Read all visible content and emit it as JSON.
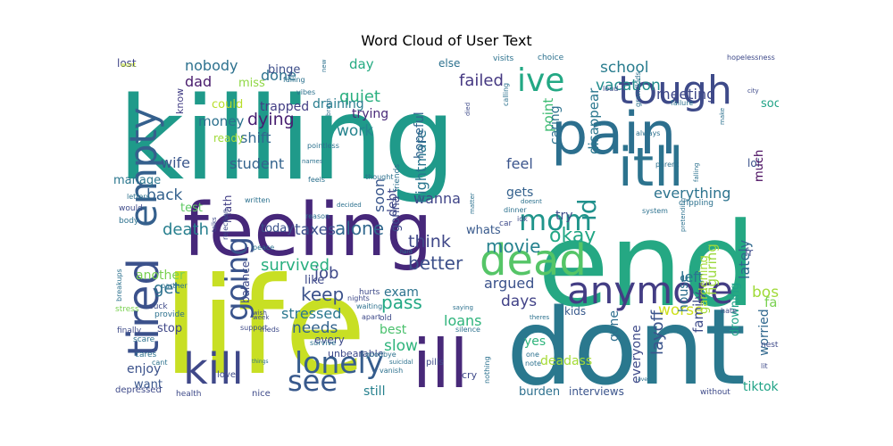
{
  "chart_data": {
    "type": "wordcloud",
    "title": "Word Cloud of User Text",
    "colormap": "viridis",
    "words": [
      {
        "text": "killing",
        "color": "#1f9a8a"
      },
      {
        "text": "life",
        "color": "#c8df24"
      },
      {
        "text": "feeling",
        "color": "#46277a"
      },
      {
        "text": "end",
        "color": "#25a883"
      },
      {
        "text": "dont",
        "color": "#2a788e"
      },
      {
        "text": "pain",
        "color": "#2c6f8e"
      },
      {
        "text": "tough",
        "color": "#3e4a89"
      },
      {
        "text": "itll",
        "color": "#2c738e"
      },
      {
        "text": "anymore",
        "color": "#433d84"
      },
      {
        "text": "tired",
        "color": "#3b518b"
      },
      {
        "text": "empty",
        "color": "#35608d"
      },
      {
        "text": "dead",
        "color": "#55c567"
      },
      {
        "text": "ill",
        "color": "#482979"
      },
      {
        "text": "kill",
        "color": "#3f4889"
      },
      {
        "text": "lonely",
        "color": "#365d8d"
      },
      {
        "text": "see",
        "color": "#38598c"
      },
      {
        "text": "going",
        "color": "#3a548c"
      },
      {
        "text": "ive",
        "color": "#23a884"
      },
      {
        "text": "mom",
        "color": "#1f958b"
      },
      {
        "text": "id",
        "color": "#21908c"
      },
      {
        "text": "job",
        "color": "#3e4989"
      },
      {
        "text": "keep",
        "color": "#3b528b"
      },
      {
        "text": "death",
        "color": "#277f8e"
      },
      {
        "text": "alone",
        "color": "#31688e"
      },
      {
        "text": "taxes",
        "color": "#3b518b"
      },
      {
        "text": "survived",
        "color": "#29af7f"
      },
      {
        "text": "think",
        "color": "#3f4788"
      },
      {
        "text": "better",
        "color": "#3c4f8a"
      },
      {
        "text": "okay",
        "color": "#22a785"
      },
      {
        "text": "movie",
        "color": "#26828e"
      },
      {
        "text": "boss",
        "color": "#a0da39"
      },
      {
        "text": "worse",
        "color": "#cfe11c"
      },
      {
        "text": "everything",
        "color": "#2c738e"
      },
      {
        "text": "layoff",
        "color": "#3a548c"
      },
      {
        "text": "family",
        "color": "#3e4c8a"
      },
      {
        "text": "lately",
        "color": "#30698e"
      },
      {
        "text": "figuring",
        "color": "#9bd93c"
      },
      {
        "text": "house",
        "color": "#2e6e8e"
      },
      {
        "text": "left",
        "color": "#2b748e"
      },
      {
        "text": "worried",
        "color": "#31688e"
      },
      {
        "text": "drowning",
        "color": "#1fa188"
      },
      {
        "text": "tiktok",
        "color": "#20a386"
      },
      {
        "text": "fail",
        "color": "#7ad151"
      },
      {
        "text": "school",
        "color": "#287c8e"
      },
      {
        "text": "vacation",
        "color": "#228c8d"
      },
      {
        "text": "meeting",
        "color": "#3f4788"
      },
      {
        "text": "failed",
        "color": "#453882"
      },
      {
        "text": "quiet",
        "color": "#29af7f"
      },
      {
        "text": "work",
        "color": "#25848e"
      },
      {
        "text": "dying",
        "color": "#481f71"
      },
      {
        "text": "shift",
        "color": "#31678e"
      },
      {
        "text": "done",
        "color": "#2c718e"
      },
      {
        "text": "money",
        "color": "#2c718e"
      },
      {
        "text": "dad",
        "color": "#481a6c"
      },
      {
        "text": "miss",
        "color": "#8fd744"
      },
      {
        "text": "trapped",
        "color": "#433e85"
      },
      {
        "text": "draining",
        "color": "#287d8e"
      },
      {
        "text": "trying",
        "color": "#482878"
      },
      {
        "text": "nobody",
        "color": "#2c718e"
      },
      {
        "text": "binge",
        "color": "#3d4e8a"
      },
      {
        "text": "day",
        "color": "#25ab82"
      },
      {
        "text": "student",
        "color": "#33638d"
      },
      {
        "text": "wife",
        "color": "#39568c"
      },
      {
        "text": "back",
        "color": "#34618d"
      },
      {
        "text": "manage",
        "color": "#2a768e"
      },
      {
        "text": "test",
        "color": "#5ec962"
      },
      {
        "text": "get",
        "color": "#2c718e"
      },
      {
        "text": "another",
        "color": "#7ad151"
      },
      {
        "text": "needs",
        "color": "#33638d"
      },
      {
        "text": "stressed",
        "color": "#2a778e"
      },
      {
        "text": "pass",
        "color": "#22a884"
      },
      {
        "text": "days",
        "color": "#414287"
      },
      {
        "text": "argued",
        "color": "#3b528b"
      },
      {
        "text": "loans",
        "color": "#2fb47c"
      },
      {
        "text": "exam",
        "color": "#2c728e"
      },
      {
        "text": "slow",
        "color": "#2fb47c"
      },
      {
        "text": "best",
        "color": "#4ac16d"
      },
      {
        "text": "still",
        "color": "#26818e"
      },
      {
        "text": "wanna",
        "color": "#404588"
      },
      {
        "text": "nightmare",
        "color": "#2a768e"
      },
      {
        "text": "hopeful",
        "color": "#32648e"
      },
      {
        "text": "point",
        "color": "#3fbc73"
      },
      {
        "text": "caring",
        "color": "#2c728e"
      },
      {
        "text": "disappear",
        "color": "#2a778e"
      },
      {
        "text": "feel",
        "color": "#3a548c"
      },
      {
        "text": "soon",
        "color": "#39568c"
      },
      {
        "text": "debt",
        "color": "#3f4788"
      },
      {
        "text": "gonna",
        "color": "#3e4a89"
      },
      {
        "text": "gets",
        "color": "#34618d"
      },
      {
        "text": "whats",
        "color": "#38598c"
      },
      {
        "text": "try",
        "color": "#3d4d8a"
      },
      {
        "text": "kids",
        "color": "#38598c"
      },
      {
        "text": "gone",
        "color": "#2e6e8e"
      },
      {
        "text": "yes",
        "color": "#2fb47c"
      },
      {
        "text": "deadass",
        "color": "#a5db36"
      },
      {
        "text": "everyone",
        "color": "#3e4a89"
      },
      {
        "text": "burden",
        "color": "#2d708e"
      },
      {
        "text": "interviews",
        "color": "#3a548c"
      },
      {
        "text": "lol",
        "color": "#3b528b"
      },
      {
        "text": "much",
        "color": "#46085c"
      },
      {
        "text": "social",
        "color": "#20a386"
      },
      {
        "text": "fr",
        "color": "#3e4a89"
      },
      {
        "text": "gardening",
        "color": "#a5db36"
      },
      {
        "text": "enjoy",
        "color": "#3b528b"
      },
      {
        "text": "want",
        "color": "#39568c"
      },
      {
        "text": "stop",
        "color": "#3f4788"
      },
      {
        "text": "every",
        "color": "#3e4a89"
      },
      {
        "text": "like",
        "color": "#3e4989"
      },
      {
        "text": "lost",
        "color": "#404588"
      },
      {
        "text": "could",
        "color": "#b8de29"
      },
      {
        "text": "ready",
        "color": "#a0da39"
      },
      {
        "text": "today",
        "color": "#3b528b"
      },
      {
        "text": "balance",
        "color": "#3e4a89"
      },
      {
        "text": "math",
        "color": "#423f85"
      },
      {
        "text": "know",
        "color": "#433e85"
      },
      {
        "text": "else",
        "color": "#2c718e"
      },
      {
        "text": "visits",
        "color": "#2c718e"
      },
      {
        "text": "choice",
        "color": "#2c718e"
      },
      {
        "text": "unbearable",
        "color": "#3e4a89"
      },
      {
        "text": "pills",
        "color": "#3e4a89"
      },
      {
        "text": "cry",
        "color": "#3e4a89"
      },
      {
        "text": "health",
        "color": "#3e4a89"
      },
      {
        "text": "love",
        "color": "#3e4a89"
      },
      {
        "text": "nice",
        "color": "#3e4a89"
      },
      {
        "text": "depressed",
        "color": "#3e4a89"
      },
      {
        "text": "finally",
        "color": "#3e4a89"
      },
      {
        "text": "stress",
        "color": "#7ad151"
      },
      {
        "text": "suck",
        "color": "#3e4a89"
      },
      {
        "text": "provide",
        "color": "#2c718e"
      },
      {
        "text": "scare",
        "color": "#2c718e"
      },
      {
        "text": "cares",
        "color": "#2c718e"
      },
      {
        "text": "breakups",
        "color": "#2c718e"
      },
      {
        "text": "partner",
        "color": "#2c718e"
      },
      {
        "text": "body",
        "color": "#2c718e"
      },
      {
        "text": "would",
        "color": "#3e4a89"
      },
      {
        "text": "letters",
        "color": "#2c718e"
      },
      {
        "text": "wont",
        "color": "#c2df23"
      },
      {
        "text": "failing",
        "color": "#2c718e"
      },
      {
        "text": "vibes",
        "color": "#2c718e"
      },
      {
        "text": "pointless",
        "color": "#2c718e"
      },
      {
        "text": "names",
        "color": "#2c718e"
      },
      {
        "text": "written",
        "color": "#2c718e"
      },
      {
        "text": "rejection",
        "color": "#3e4a89"
      },
      {
        "text": "talks",
        "color": "#3e4a89"
      },
      {
        "text": "peace",
        "color": "#2c718e"
      },
      {
        "text": "wish",
        "color": "#3e4a89"
      },
      {
        "text": "week",
        "color": "#3e4a89"
      },
      {
        "text": "support",
        "color": "#3e4a89"
      },
      {
        "text": "meds",
        "color": "#3e4a89"
      },
      {
        "text": "things",
        "color": "#2c718e"
      },
      {
        "text": "survive",
        "color": "#2c718e"
      },
      {
        "text": "vanish",
        "color": "#2c718e"
      },
      {
        "text": "goodbye",
        "color": "#2c718e"
      },
      {
        "text": "hurts",
        "color": "#3e4a89"
      },
      {
        "text": "nights",
        "color": "#3e4a89"
      },
      {
        "text": "waiting",
        "color": "#2c718e"
      },
      {
        "text": "apart",
        "color": "#3e4a89"
      },
      {
        "text": "old",
        "color": "#3e4a89"
      },
      {
        "text": "silence",
        "color": "#2c718e"
      },
      {
        "text": "saying",
        "color": "#2c718e"
      },
      {
        "text": "suicidal",
        "color": "#2c718e"
      },
      {
        "text": "nothing",
        "color": "#2c718e"
      },
      {
        "text": "one",
        "color": "#2c718e"
      },
      {
        "text": "note",
        "color": "#2c718e"
      },
      {
        "text": "theres",
        "color": "#2c718e"
      },
      {
        "text": "hard",
        "color": "#2c718e"
      },
      {
        "text": "car",
        "color": "#3e4a89"
      },
      {
        "text": "idk",
        "color": "#3e4a89"
      },
      {
        "text": "dinner",
        "color": "#2c718e"
      },
      {
        "text": "doesnt",
        "color": "#2c718e"
      },
      {
        "text": "thought",
        "color": "#2c718e"
      },
      {
        "text": "reason",
        "color": "#2c718e"
      },
      {
        "text": "decided",
        "color": "#2c718e"
      },
      {
        "text": "matter",
        "color": "#2c718e"
      },
      {
        "text": "friends",
        "color": "#2c718e"
      },
      {
        "text": "feels",
        "color": "#2c718e"
      },
      {
        "text": "brush",
        "color": "#2c718e"
      },
      {
        "text": "system",
        "color": "#2c718e"
      },
      {
        "text": "crippling",
        "color": "#2c718e"
      },
      {
        "text": "pretending",
        "color": "#2c718e"
      },
      {
        "text": "falling",
        "color": "#2c718e"
      },
      {
        "text": "parent",
        "color": "#2c718e"
      },
      {
        "text": "always",
        "color": "#2c718e"
      },
      {
        "text": "failure",
        "color": "#2c718e"
      },
      {
        "text": "make",
        "color": "#2c718e"
      },
      {
        "text": "hopelessness",
        "color": "#3e4a89"
      },
      {
        "text": "city",
        "color": "#3e4a89"
      },
      {
        "text": "loud",
        "color": "#3e4a89"
      },
      {
        "text": "grandkids",
        "color": "#2c718e"
      },
      {
        "text": "calling",
        "color": "#2c718e"
      },
      {
        "text": "died",
        "color": "#3e4a89"
      },
      {
        "text": "hate",
        "color": "#3e4a89"
      },
      {
        "text": "nest",
        "color": "#3e4a89"
      },
      {
        "text": "lit",
        "color": "#3e4a89"
      },
      {
        "text": "without",
        "color": "#3e4a89"
      },
      {
        "text": "even",
        "color": "#2c718e"
      },
      {
        "text": "new",
        "color": "#2c718e"
      },
      {
        "text": "cant",
        "color": "#2c718e"
      }
    ]
  }
}
